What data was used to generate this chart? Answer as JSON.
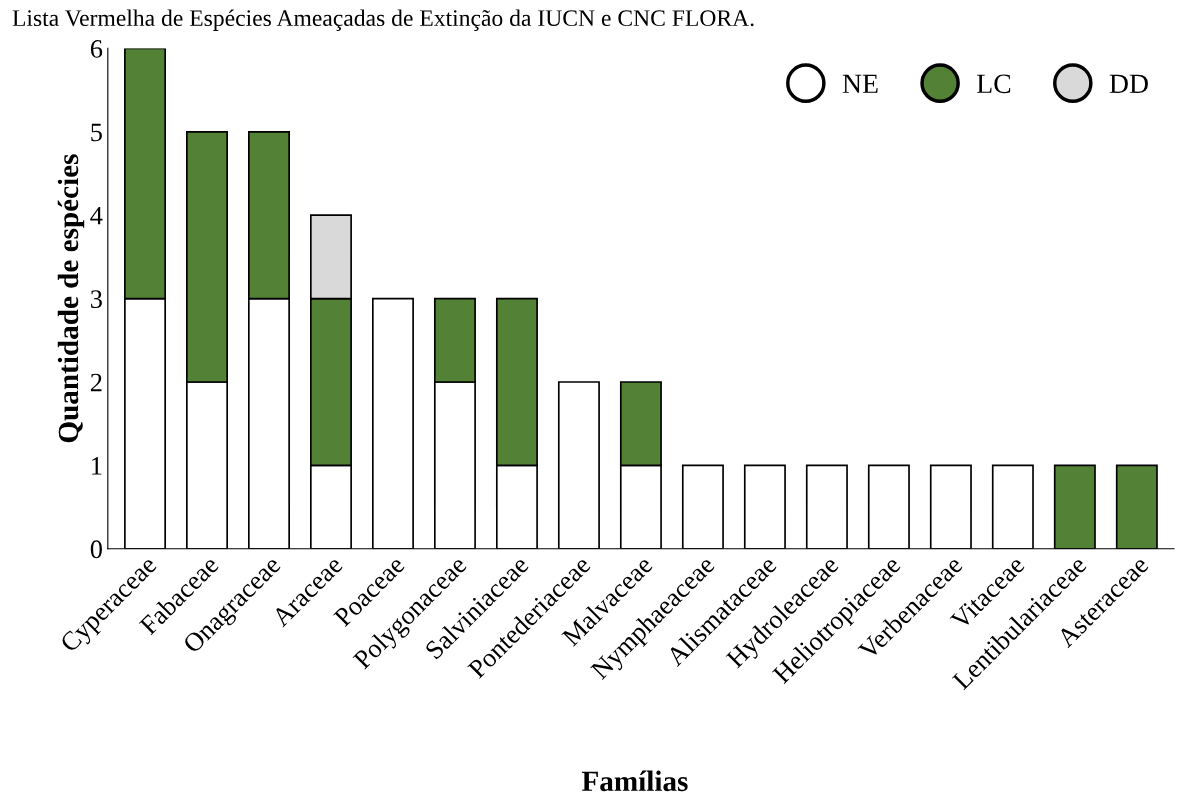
{
  "chart_data": {
    "type": "bar",
    "stacked": true,
    "title": "Lista Vermelha de Espécies Ameaçadas de Extinção da IUCN e CNC FLORA.",
    "xlabel": "Famílias",
    "ylabel": "Quantidade de espécies",
    "categories": [
      "Cyperaceae",
      "Fabaceae",
      "Onagraceae",
      "Araceae",
      "Poaceae",
      "Polygonaceae",
      "Salviniaceae",
      "Pontederiaceae",
      "Malvaceae",
      "Nymphaeaceae",
      "Alismataceae",
      "Hydroleaceae",
      "Heliotropiaceae",
      "Verbenaceae",
      "Vitaceae",
      "Lentibulariaceae",
      "Asteraceae"
    ],
    "series": [
      {
        "name": "NE",
        "color": "#ffffff",
        "values": [
          3,
          2,
          3,
          1,
          3,
          2,
          1,
          2,
          1,
          1,
          1,
          1,
          1,
          1,
          1,
          0,
          0
        ]
      },
      {
        "name": "LC",
        "color": "#538135",
        "values": [
          3,
          3,
          2,
          2,
          0,
          1,
          2,
          0,
          1,
          0,
          0,
          0,
          0,
          0,
          0,
          1,
          1
        ]
      },
      {
        "name": "DD",
        "color": "#d9d9d9",
        "values": [
          0,
          0,
          0,
          1,
          0,
          0,
          0,
          0,
          0,
          0,
          0,
          0,
          0,
          0,
          0,
          0,
          0
        ]
      }
    ],
    "ylim": [
      0,
      6
    ],
    "yticks": [
      0,
      1,
      2,
      3,
      4,
      5,
      6
    ],
    "grid": false,
    "legend": "top right"
  }
}
